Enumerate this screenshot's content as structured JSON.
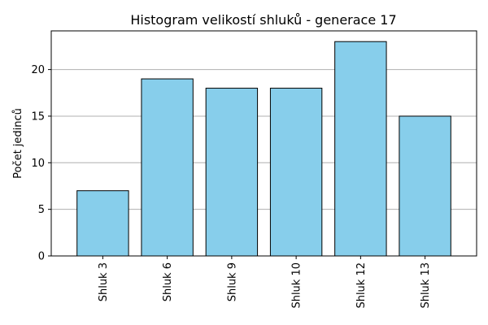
{
  "chart_data": {
    "type": "bar",
    "title": "Histogram velikostí shluků - generace 17",
    "xlabel": "",
    "ylabel": "Počet jedinců",
    "categories": [
      "Shluk 3",
      "Shluk 6",
      "Shluk 9",
      "Shluk 10",
      "Shluk 12",
      "Shluk 13"
    ],
    "values": [
      7,
      19,
      18,
      18,
      23,
      15
    ],
    "ylim": [
      0,
      24.15
    ],
    "yticks": [
      0,
      5,
      10,
      15,
      20
    ],
    "grid": "y",
    "colors": {
      "bar": "#87ceeb",
      "edge": "#000000",
      "grid": "#b0b0b0"
    }
  }
}
